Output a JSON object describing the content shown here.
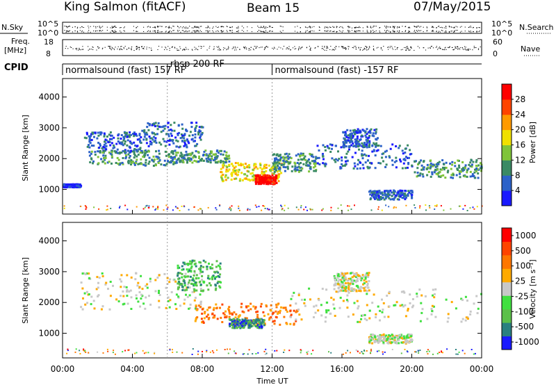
{
  "header": {
    "station": "King Salmon (fitACF)",
    "beam": "Beam 15",
    "date": "07/May/2015"
  },
  "strip_labels": {
    "nsky": "N.Sky",
    "freq": "Freq.",
    "mhz": "[MHz]",
    "cpid": "CPID",
    "nsearch": "N.Search",
    "nave": "Nave"
  },
  "strip_ticks": {
    "noise_top_left": "10^5",
    "noise_bottom_left": "10^0",
    "noise_top_right": "10^5",
    "noise_bottom_right": "10^0",
    "freq_top": "18",
    "freq_bottom": "8",
    "nave_top": "60",
    "nave_bottom": "0"
  },
  "cpid_segments": [
    {
      "label": "normalsound (fast) 157 RF",
      "start_hour": 0.0
    },
    {
      "label": "rbsp 200 RF",
      "start_hour": 6.0
    },
    {
      "label": "normalsound (fast) -157 RF",
      "start_hour": 12.0
    }
  ],
  "chart_data": [
    {
      "type": "heatmap",
      "name": "power",
      "ylabel": "Slant Range [km]",
      "xlabel": "",
      "xlim": [
        0,
        24
      ],
      "ylim": [
        200,
        4600
      ],
      "yticks": [
        1000,
        2000,
        3000,
        4000
      ],
      "colorbar": {
        "label": "Power [dB]",
        "ticks": [
          "4",
          "8",
          "12",
          "16",
          "20",
          "24",
          "28"
        ],
        "colors": [
          "#1a1aff",
          "#2c62c8",
          "#3a8a64",
          "#7fc43a",
          "#f0e000",
          "#ff9a00",
          "#ff4400",
          "#ff0000"
        ]
      },
      "bands": [
        {
          "t0": 0.0,
          "t1": 1.0,
          "r0": 1100,
          "r1": 1200,
          "level": 0
        },
        {
          "t0": 1.2,
          "t1": 4.5,
          "r0": 2200,
          "r1": 2900,
          "level": 1
        },
        {
          "t0": 1.5,
          "t1": 6.5,
          "r0": 1800,
          "r1": 2300,
          "level": 2
        },
        {
          "t0": 4.5,
          "t1": 8.0,
          "r0": 2400,
          "r1": 3200,
          "level": 1
        },
        {
          "t0": 6.0,
          "t1": 9.5,
          "r0": 1900,
          "r1": 2300,
          "level": 2
        },
        {
          "t0": 9.0,
          "t1": 12.5,
          "r0": 1300,
          "r1": 1900,
          "level": 4
        },
        {
          "t0": 11.0,
          "t1": 12.2,
          "r0": 1200,
          "r1": 1500,
          "level": 7
        },
        {
          "t0": 12.0,
          "t1": 14.5,
          "r0": 1600,
          "r1": 2200,
          "level": 2
        },
        {
          "t0": 14.5,
          "t1": 20.0,
          "r0": 1700,
          "r1": 2500,
          "level": 1
        },
        {
          "t0": 20.0,
          "t1": 24.0,
          "r0": 1400,
          "r1": 2000,
          "level": 2
        },
        {
          "t0": 16.0,
          "t1": 18.0,
          "r0": 2400,
          "r1": 3000,
          "level": 1
        },
        {
          "t0": 17.5,
          "t1": 20.0,
          "r0": 700,
          "r1": 1000,
          "level": 1
        }
      ]
    },
    {
      "type": "heatmap",
      "name": "velocity",
      "ylabel": "Slant Range [km]",
      "xlabel": "Time UT",
      "xlim": [
        0,
        24
      ],
      "ylim": [
        200,
        4600
      ],
      "yticks": [
        1000,
        2000,
        3000,
        4000
      ],
      "xticks": [
        "00:00",
        "04:00",
        "08:00",
        "12:00",
        "16:00",
        "20:00",
        "00:00"
      ],
      "colorbar": {
        "label": "Velocity [m s⁻¹]",
        "ticks": [
          "1000",
          "500",
          "100",
          "25",
          "-25",
          "-100",
          "-500",
          "-1000"
        ],
        "colors": [
          "#1a1aff",
          "#2a8080",
          "#5cc04a",
          "#40e040",
          "#c8c8c8",
          "#ffaa00",
          "#ff7700",
          "#ff4400",
          "#ff0000"
        ]
      },
      "bands": [
        {
          "t0": 1.0,
          "t1": 8.0,
          "r0": 1800,
          "r1": 3000,
          "level": 4
        },
        {
          "t0": 6.5,
          "t1": 9.0,
          "r0": 2400,
          "r1": 3400,
          "level": 2
        },
        {
          "t0": 7.5,
          "t1": 13.5,
          "r0": 1300,
          "r1": 2000,
          "level": 6
        },
        {
          "t0": 9.5,
          "t1": 11.5,
          "r0": 1200,
          "r1": 1500,
          "level": 1
        },
        {
          "t0": 13.0,
          "t1": 24.0,
          "r0": 1400,
          "r1": 2500,
          "level": 4
        },
        {
          "t0": 15.5,
          "t1": 17.5,
          "r0": 2400,
          "r1": 3000,
          "level": 4
        },
        {
          "t0": 17.5,
          "t1": 20.0,
          "r0": 700,
          "r1": 1000,
          "level": 4
        }
      ]
    }
  ]
}
